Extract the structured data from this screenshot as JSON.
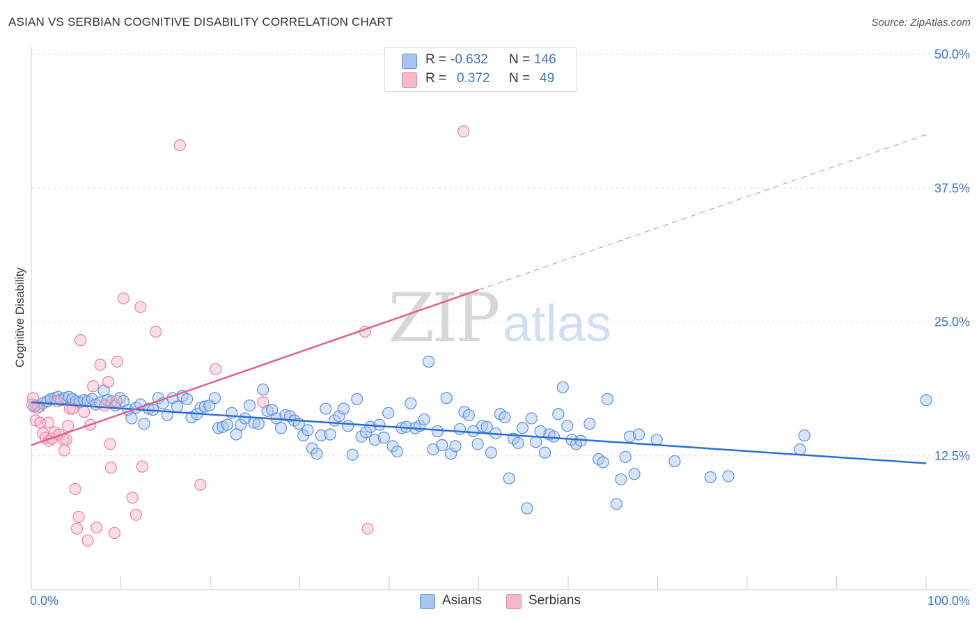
{
  "title": "ASIAN VS SERBIAN COGNITIVE DISABILITY CORRELATION CHART",
  "source": "Source: ZipAtlas.com",
  "watermark": {
    "zip": "ZIP",
    "atlas": "atlas"
  },
  "colors": {
    "asian_fill": "#a9c6f0",
    "asian_stroke": "#5a8fd8",
    "asian_line": "#2b6fd0",
    "serbian_fill": "#f5b8cb",
    "serbian_stroke": "#e8809f",
    "serbian_line": "#e06088",
    "axis_label": "#3b73c9",
    "grid": "#dddddd"
  },
  "legend": {
    "asian": {
      "r_label": "R =",
      "r_value": "-0.632",
      "n_label": "N =",
      "n_value": "146"
    },
    "serbian": {
      "r_label": "R =",
      "r_value": "0.372",
      "n_label": "N =",
      "n_value": "49"
    }
  },
  "bottom_legend": {
    "asian": "Asians",
    "serbian": "Serbians"
  },
  "chart_data": {
    "type": "scatter",
    "title": "ASIAN VS SERBIAN COGNITIVE DISABILITY CORRELATION CHART",
    "xlabel": "",
    "ylabel": "Cognitive Disability",
    "xlim": [
      0,
      100
    ],
    "ylim": [
      0,
      50
    ],
    "x_tick_labels": [
      "0.0%",
      "100.0%"
    ],
    "y_tick_labels": [
      "12.5%",
      "25.0%",
      "37.5%",
      "50.0%"
    ],
    "y_ticks": [
      12.5,
      25.0,
      37.5,
      50.0
    ],
    "grid": true,
    "legend_placement": "top-center",
    "series": [
      {
        "name": "Asians",
        "r": -0.632,
        "n": 146,
        "trend": {
          "x": [
            0,
            100
          ],
          "y": [
            17.5,
            11.8
          ],
          "style": "solid"
        },
        "points": [
          [
            0.5,
            17.2
          ],
          [
            0.9,
            17.1
          ],
          [
            1.3,
            17.4
          ],
          [
            1.8,
            17.6
          ],
          [
            2.2,
            17.8
          ],
          [
            2.6,
            17.9
          ],
          [
            3.0,
            18.0
          ],
          [
            3.3,
            17.7
          ],
          [
            3.7,
            17.9
          ],
          [
            4.2,
            18.0
          ],
          [
            4.6,
            17.8
          ],
          [
            5.0,
            17.6
          ],
          [
            5.4,
            17.5
          ],
          [
            5.9,
            17.7
          ],
          [
            6.3,
            17.6
          ],
          [
            6.8,
            17.8
          ],
          [
            7.2,
            17.3
          ],
          [
            7.7,
            17.5
          ],
          [
            8.1,
            18.6
          ],
          [
            8.5,
            17.7
          ],
          [
            9.0,
            17.6
          ],
          [
            9.4,
            17.2
          ],
          [
            9.9,
            17.9
          ],
          [
            10.3,
            17.6
          ],
          [
            10.8,
            16.8
          ],
          [
            11.2,
            16.0
          ],
          [
            11.7,
            17.0
          ],
          [
            12.2,
            17.3
          ],
          [
            12.6,
            15.5
          ],
          [
            13.1,
            16.9
          ],
          [
            13.6,
            16.8
          ],
          [
            14.2,
            17.9
          ],
          [
            14.7,
            17.4
          ],
          [
            15.2,
            16.3
          ],
          [
            15.8,
            17.9
          ],
          [
            16.3,
            17.1
          ],
          [
            16.9,
            18.1
          ],
          [
            17.4,
            17.8
          ],
          [
            17.9,
            16.1
          ],
          [
            18.5,
            16.4
          ],
          [
            18.9,
            17.0
          ],
          [
            19.4,
            17.1
          ],
          [
            19.9,
            17.2
          ],
          [
            20.5,
            17.9
          ],
          [
            20.9,
            15.1
          ],
          [
            21.4,
            15.2
          ],
          [
            21.9,
            15.4
          ],
          [
            22.4,
            16.5
          ],
          [
            22.9,
            14.5
          ],
          [
            23.4,
            15.4
          ],
          [
            23.9,
            16.0
          ],
          [
            24.4,
            17.2
          ],
          [
            24.9,
            15.6
          ],
          [
            25.4,
            15.5
          ],
          [
            25.9,
            18.7
          ],
          [
            26.4,
            16.7
          ],
          [
            26.9,
            16.8
          ],
          [
            27.4,
            16.0
          ],
          [
            27.9,
            15.1
          ],
          [
            28.4,
            16.3
          ],
          [
            28.9,
            16.2
          ],
          [
            29.4,
            15.8
          ],
          [
            29.9,
            15.5
          ],
          [
            30.4,
            14.4
          ],
          [
            30.9,
            14.9
          ],
          [
            31.4,
            13.2
          ],
          [
            31.9,
            12.7
          ],
          [
            32.4,
            14.4
          ],
          [
            32.9,
            16.9
          ],
          [
            33.4,
            14.5
          ],
          [
            33.9,
            15.8
          ],
          [
            34.4,
            16.2
          ],
          [
            34.9,
            16.9
          ],
          [
            35.4,
            15.3
          ],
          [
            35.9,
            12.6
          ],
          [
            36.4,
            17.8
          ],
          [
            36.9,
            14.3
          ],
          [
            37.4,
            14.7
          ],
          [
            37.9,
            15.2
          ],
          [
            38.4,
            14.0
          ],
          [
            38.9,
            15.4
          ],
          [
            39.4,
            14.2
          ],
          [
            39.9,
            16.5
          ],
          [
            40.4,
            13.4
          ],
          [
            40.9,
            12.9
          ],
          [
            41.4,
            15.1
          ],
          [
            41.9,
            15.2
          ],
          [
            42.4,
            17.4
          ],
          [
            42.9,
            15.1
          ],
          [
            43.4,
            15.3
          ],
          [
            43.9,
            15.9
          ],
          [
            44.4,
            21.3
          ],
          [
            44.9,
            13.1
          ],
          [
            45.4,
            14.8
          ],
          [
            45.9,
            13.5
          ],
          [
            46.4,
            17.9
          ],
          [
            46.9,
            12.7
          ],
          [
            47.4,
            13.4
          ],
          [
            47.9,
            15.0
          ],
          [
            48.4,
            16.6
          ],
          [
            48.9,
            16.3
          ],
          [
            49.4,
            14.8
          ],
          [
            49.9,
            13.6
          ],
          [
            50.4,
            15.3
          ],
          [
            50.9,
            15.2
          ],
          [
            51.4,
            12.8
          ],
          [
            51.9,
            14.6
          ],
          [
            52.4,
            16.4
          ],
          [
            52.9,
            16.1
          ],
          [
            53.4,
            10.4
          ],
          [
            53.9,
            14.1
          ],
          [
            54.4,
            13.7
          ],
          [
            54.9,
            15.1
          ],
          [
            55.4,
            7.6
          ],
          [
            55.9,
            16.0
          ],
          [
            56.4,
            13.8
          ],
          [
            56.9,
            14.8
          ],
          [
            57.4,
            12.8
          ],
          [
            57.9,
            14.5
          ],
          [
            58.4,
            14.3
          ],
          [
            58.9,
            16.4
          ],
          [
            59.4,
            18.9
          ],
          [
            59.9,
            15.3
          ],
          [
            60.4,
            14.0
          ],
          [
            60.9,
            13.6
          ],
          [
            61.4,
            13.9
          ],
          [
            62.4,
            15.5
          ],
          [
            63.4,
            12.2
          ],
          [
            63.9,
            11.9
          ],
          [
            64.4,
            17.8
          ],
          [
            65.4,
            8.0
          ],
          [
            65.9,
            10.3
          ],
          [
            66.4,
            12.4
          ],
          [
            66.9,
            14.3
          ],
          [
            67.4,
            10.8
          ],
          [
            67.9,
            14.5
          ],
          [
            69.9,
            14.0
          ],
          [
            71.9,
            12.0
          ],
          [
            75.9,
            10.5
          ],
          [
            77.9,
            10.6
          ],
          [
            85.9,
            13.1
          ],
          [
            86.4,
            14.4
          ],
          [
            100.0,
            17.7
          ],
          [
            0.3,
            17.1
          ]
        ]
      },
      {
        "name": "Serbians",
        "r": 0.372,
        "n": 49,
        "trend": {
          "x": [
            0,
            50,
            100
          ],
          "y": [
            13.5,
            28.0,
            42.5
          ],
          "style": "solid-then-dashed"
        },
        "points": [
          [
            0.2,
            17.9
          ],
          [
            0.5,
            15.8
          ],
          [
            0.7,
            17.0
          ],
          [
            1.0,
            15.6
          ],
          [
            1.3,
            14.6
          ],
          [
            1.6,
            14.2
          ],
          [
            1.9,
            15.6
          ],
          [
            2.0,
            13.9
          ],
          [
            2.3,
            14.1
          ],
          [
            2.6,
            14.7
          ],
          [
            2.9,
            17.6
          ],
          [
            3.1,
            14.5
          ],
          [
            3.6,
            14.0
          ],
          [
            3.7,
            13.0
          ],
          [
            3.9,
            14.0
          ],
          [
            4.1,
            15.3
          ],
          [
            4.3,
            16.9
          ],
          [
            4.6,
            16.9
          ],
          [
            4.9,
            9.4
          ],
          [
            5.1,
            5.7
          ],
          [
            5.3,
            6.8
          ],
          [
            5.5,
            23.3
          ],
          [
            5.9,
            16.6
          ],
          [
            6.3,
            4.6
          ],
          [
            6.6,
            15.4
          ],
          [
            6.9,
            19.0
          ],
          [
            7.3,
            5.8
          ],
          [
            7.7,
            21.0
          ],
          [
            8.2,
            17.2
          ],
          [
            8.6,
            19.4
          ],
          [
            8.8,
            13.6
          ],
          [
            8.9,
            11.4
          ],
          [
            9.3,
            5.3
          ],
          [
            9.5,
            17.6
          ],
          [
            9.6,
            21.3
          ],
          [
            10.3,
            27.2
          ],
          [
            11.3,
            8.6
          ],
          [
            11.7,
            7.0
          ],
          [
            12.2,
            26.4
          ],
          [
            12.4,
            11.5
          ],
          [
            13.9,
            24.1
          ],
          [
            16.6,
            41.5
          ],
          [
            18.9,
            9.8
          ],
          [
            20.6,
            20.6
          ],
          [
            25.9,
            17.5
          ],
          [
            37.3,
            24.1
          ],
          [
            37.6,
            5.7
          ],
          [
            48.3,
            42.8
          ],
          [
            0.1,
            17.3
          ]
        ]
      }
    ]
  }
}
